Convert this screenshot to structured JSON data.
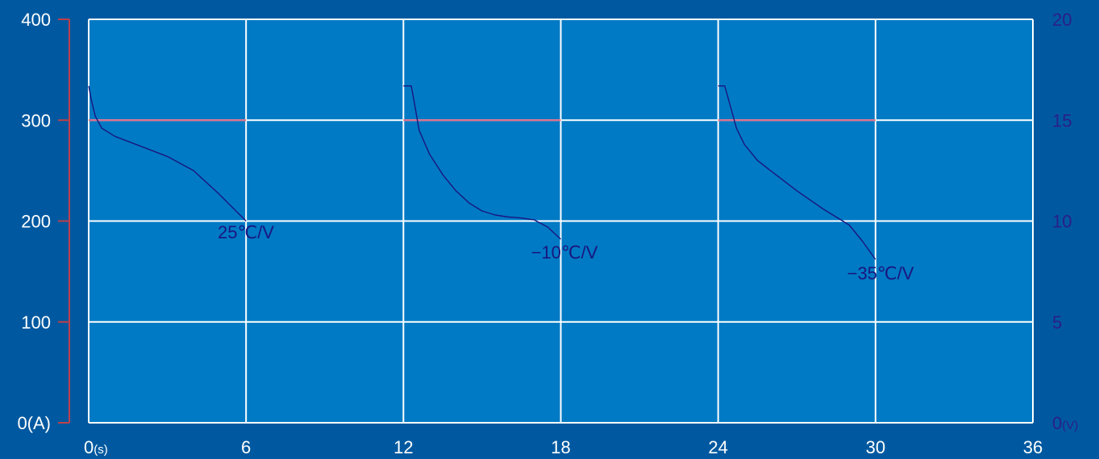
{
  "colors": {
    "page_background": "#0059a0",
    "plot_background": "#007ac4",
    "grid": "#ffffff",
    "current_line": "#e0708a",
    "voltage_line": "#1a1680",
    "left_axis": "#c0404a",
    "right_axis_text": "#2a1e8a"
  },
  "chart_data": {
    "type": "line",
    "title": "",
    "grid": true,
    "x_axis": {
      "range": [
        0,
        36
      ],
      "ticks": [
        0,
        6,
        12,
        18,
        24,
        30,
        36
      ],
      "tick_labels": [
        "0",
        "6",
        "12",
        "18",
        "24",
        "30",
        "36"
      ],
      "unit_label": "(s)"
    },
    "y_left": {
      "range": [
        0,
        400
      ],
      "ticks": [
        0,
        100,
        200,
        300,
        400
      ],
      "tick_labels": [
        "0(A)",
        "100",
        "200",
        "300",
        "400"
      ]
    },
    "y_right": {
      "range": [
        0,
        20
      ],
      "ticks": [
        0,
        5,
        10,
        15,
        20
      ],
      "tick_labels": [
        "0",
        "5",
        "10",
        "15",
        "20"
      ],
      "unit_label": "(V)"
    },
    "series": [
      {
        "axis": "left",
        "segments": [
          [
            [
              0,
              300
            ],
            [
              6,
              300
            ]
          ],
          [
            [
              12,
              300
            ],
            [
              18,
              300
            ]
          ],
          [
            [
              24,
              300
            ],
            [
              30,
              300
            ]
          ]
        ]
      },
      {
        "name": "25℃/V",
        "axis": "right",
        "label": "25℃/V",
        "points": [
          [
            0,
            16.7
          ],
          [
            0.1,
            16.0
          ],
          [
            0.25,
            15.2
          ],
          [
            0.5,
            14.6
          ],
          [
            1,
            14.2
          ],
          [
            2,
            13.7
          ],
          [
            3,
            13.2
          ],
          [
            4,
            12.5
          ],
          [
            5,
            11.3
          ],
          [
            6,
            10.0
          ]
        ]
      },
      {
        "name": "-10℃/V",
        "axis": "right",
        "label": "−10℃/V",
        "points": [
          [
            12,
            16.7
          ],
          [
            12.3,
            16.7
          ],
          [
            12.4,
            16.0
          ],
          [
            12.6,
            14.5
          ],
          [
            13,
            13.3
          ],
          [
            13.5,
            12.3
          ],
          [
            14,
            11.5
          ],
          [
            14.5,
            10.9
          ],
          [
            15,
            10.5
          ],
          [
            15.5,
            10.3
          ],
          [
            16,
            10.2
          ],
          [
            16.5,
            10.15
          ],
          [
            17,
            10.05
          ],
          [
            17.5,
            9.7
          ],
          [
            18,
            9.1
          ]
        ]
      },
      {
        "name": "-35℃/V",
        "axis": "right",
        "label": "−35℃/V",
        "points": [
          [
            24,
            16.7
          ],
          [
            24.25,
            16.7
          ],
          [
            24.4,
            16.0
          ],
          [
            24.7,
            14.6
          ],
          [
            25,
            13.8
          ],
          [
            25.5,
            13.0
          ],
          [
            26,
            12.5
          ],
          [
            27,
            11.5
          ],
          [
            28,
            10.6
          ],
          [
            29,
            9.8
          ],
          [
            29.5,
            9.0
          ],
          [
            30,
            8.1
          ]
        ]
      }
    ]
  }
}
